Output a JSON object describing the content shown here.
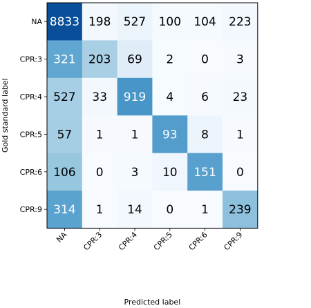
{
  "chart_data": {
    "type": "heatmap",
    "title": "",
    "xlabel": "Predicted label",
    "ylabel": "Gold standard label",
    "x_categories": [
      "NA",
      "CPR:3",
      "CPR:4",
      "CPR:5",
      "CPR:6",
      "CPR:9"
    ],
    "y_categories": [
      "NA",
      "CPR:3",
      "CPR:4",
      "CPR:5",
      "CPR:6",
      "CPR:9"
    ],
    "values": [
      [
        8833,
        198,
        527,
        100,
        104,
        223
      ],
      [
        321,
        203,
        69,
        2,
        0,
        3
      ],
      [
        527,
        33,
        919,
        4,
        6,
        23
      ],
      [
        57,
        1,
        1,
        93,
        8,
        1
      ],
      [
        106,
        0,
        3,
        10,
        151,
        0
      ],
      [
        314,
        1,
        14,
        0,
        1,
        239
      ]
    ],
    "colormap": "Blues",
    "color_normalization": "row",
    "text_color_light": "#ffffff",
    "text_color_dark": "#000000",
    "grid": false,
    "x_tick_rotation": 45
  }
}
